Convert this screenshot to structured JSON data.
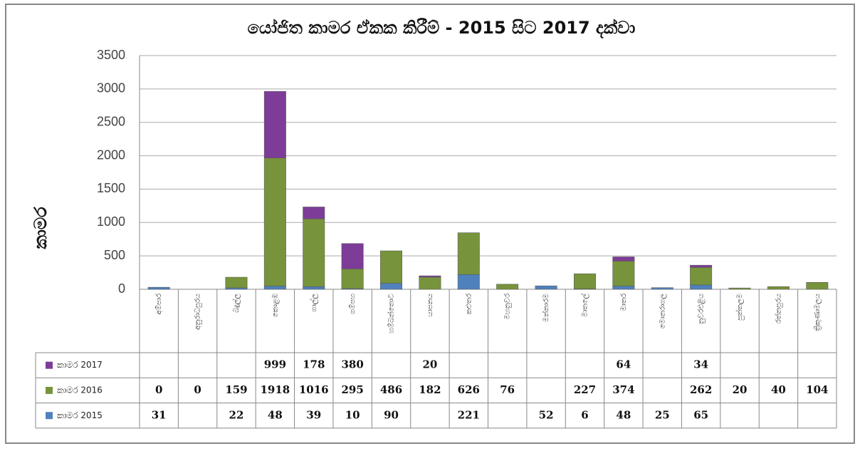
{
  "chart_data": {
    "type": "stacked_bar",
    "title": "යෝජිත කාමර ඒකක කිරීම් - 2015 සිට 2017 දක්වා",
    "y_label": "කාමර",
    "categories": [
      "අම්පාර",
      "අනුරාධපුරය",
      "බදුල්ල",
      "කොළඹ",
      "ගාල්ල",
      "ගම්පහ",
      "හම්බන්තොට",
      "යාපනය",
      "කළුතර",
      "මහනුවර",
      "මන්නාරම",
      "මාතලේ",
      "මාතර",
      "මොනරාගල",
      "නුවරඑළිය",
      "පුත්තලම",
      "රත්නපුරය",
      "ත්‍රිකුණාමලය"
    ],
    "series": [
      {
        "name": "කාමර 2017",
        "color": "#7d3c98",
        "values": [
          null,
          null,
          null,
          999,
          178,
          380,
          null,
          20,
          null,
          null,
          null,
          null,
          64,
          null,
          34,
          null,
          null,
          null
        ]
      },
      {
        "name": "කාමර 2016",
        "color": "#77933c",
        "values": [
          0,
          0,
          159,
          1918,
          1016,
          295,
          486,
          182,
          626,
          76,
          null,
          227,
          374,
          null,
          262,
          20,
          40,
          104
        ]
      },
      {
        "name": "කාමර 2015",
        "color": "#4f81bd",
        "values": [
          31,
          null,
          22,
          48,
          39,
          10,
          90,
          null,
          221,
          null,
          52,
          6,
          48,
          25,
          65,
          null,
          null,
          null
        ]
      }
    ],
    "ylim": [
      0,
      3500
    ],
    "yticks": [
      0,
      500,
      1000,
      1500,
      2000,
      2500,
      3000,
      3500
    ],
    "grid": true
  }
}
